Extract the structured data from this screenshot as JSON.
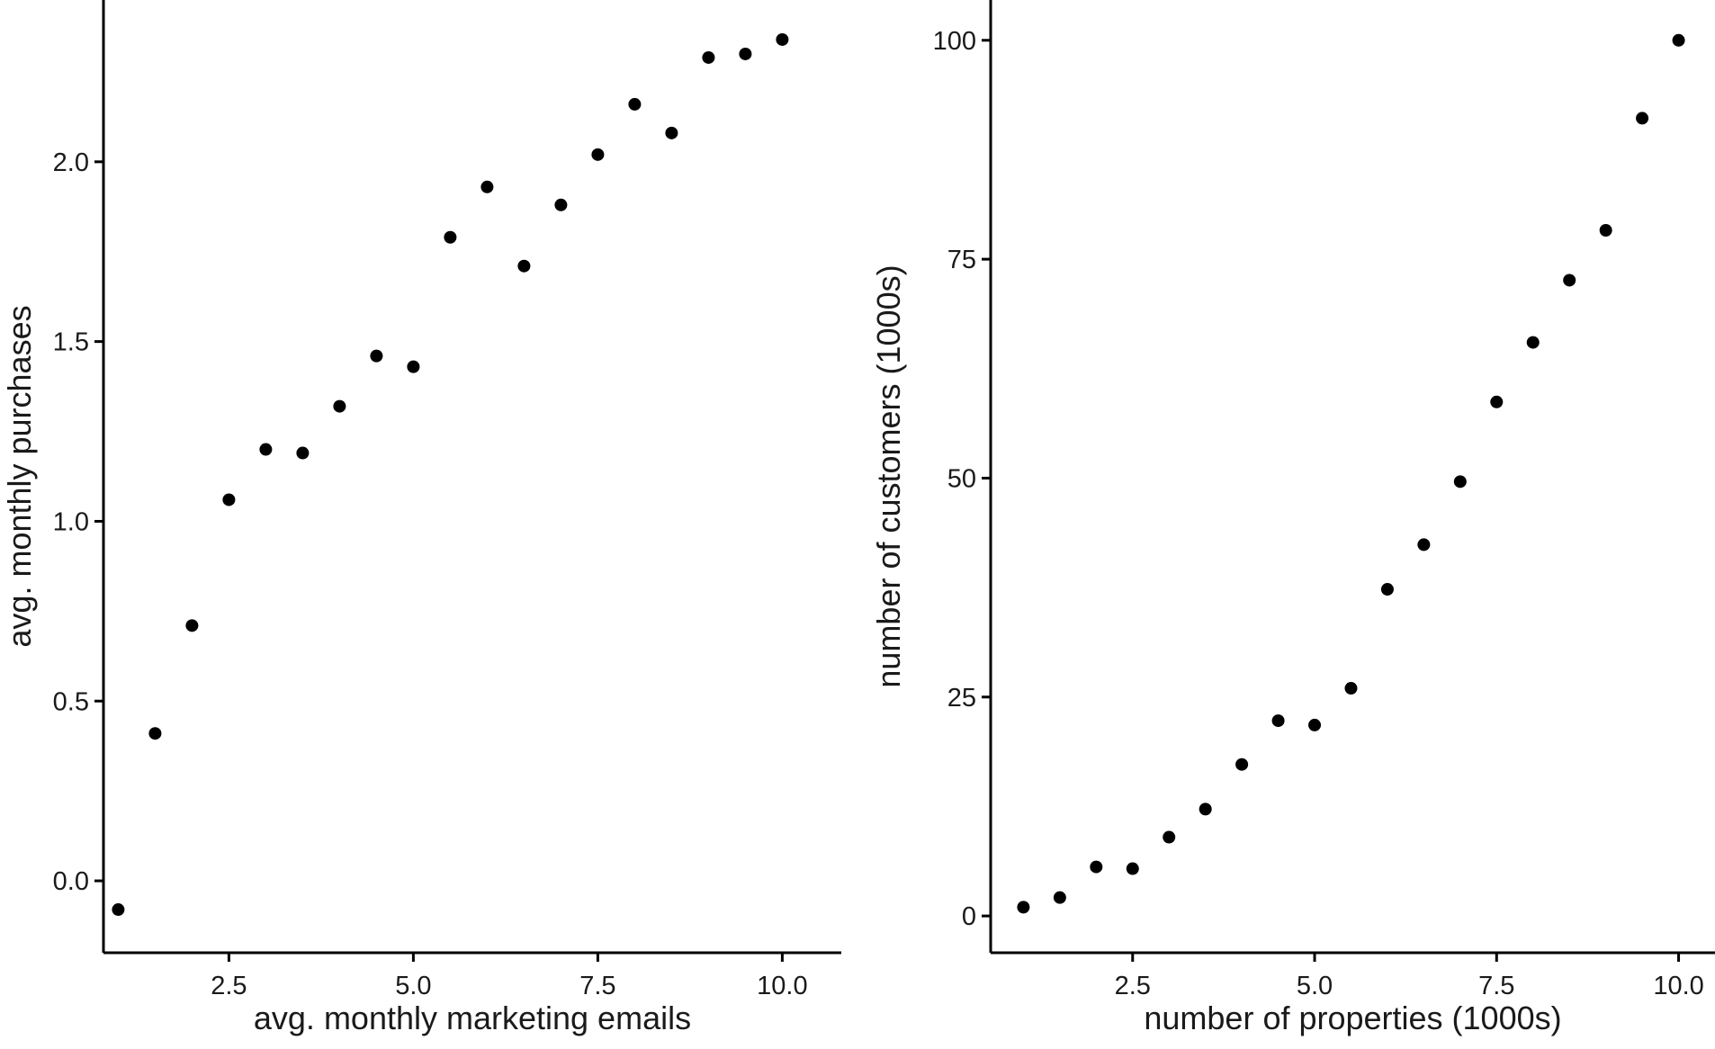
{
  "chart_data": [
    {
      "type": "scatter",
      "xlabel": "avg. monthly marketing emails",
      "ylabel": "avg. monthly purchases",
      "xlim": [
        0.8,
        10.8
      ],
      "ylim": [
        -0.2,
        2.45
      ],
      "xticks": [
        "2.5",
        "5.0",
        "7.5",
        "10.0"
      ],
      "yticks": [
        "0.0",
        "0.5",
        "1.0",
        "1.5",
        "2.0"
      ],
      "grid": false,
      "series": [
        {
          "x": [
            1.0,
            1.5,
            2.0,
            2.5,
            3.0,
            3.5,
            4.0,
            4.5,
            5.0,
            5.5,
            6.0,
            6.5,
            7.0,
            7.5,
            8.0,
            8.5,
            9.0,
            9.5,
            10.0
          ],
          "y": [
            -0.08,
            0.41,
            0.71,
            1.06,
            1.2,
            1.19,
            1.32,
            1.46,
            1.43,
            1.79,
            1.93,
            1.71,
            1.88,
            2.02,
            2.16,
            2.08,
            2.29,
            2.3,
            2.34
          ]
        }
      ]
    },
    {
      "type": "scatter",
      "xlabel": "number of properties (1000s)",
      "ylabel": "number of customers (1000s)",
      "xlim": [
        0.55,
        10.5
      ],
      "ylim": [
        -4.2,
        104.6
      ],
      "xticks": [
        "2.5",
        "5.0",
        "7.5",
        "10.0"
      ],
      "yticks": [
        "0",
        "25",
        "50",
        "75",
        "100"
      ],
      "grid": false,
      "series": [
        {
          "x": [
            1.0,
            1.5,
            2.0,
            2.5,
            3.0,
            3.5,
            4.0,
            4.5,
            5.0,
            5.5,
            6.0,
            6.5,
            7.0,
            7.5,
            8.0,
            8.5,
            9.0,
            9.5,
            10.0
          ],
          "y": [
            1.0,
            2.1,
            5.6,
            5.4,
            9.0,
            12.2,
            17.3,
            22.3,
            21.8,
            26.0,
            37.3,
            42.4,
            49.6,
            58.7,
            65.5,
            72.6,
            78.3,
            91.1,
            100.0
          ]
        }
      ]
    }
  ]
}
